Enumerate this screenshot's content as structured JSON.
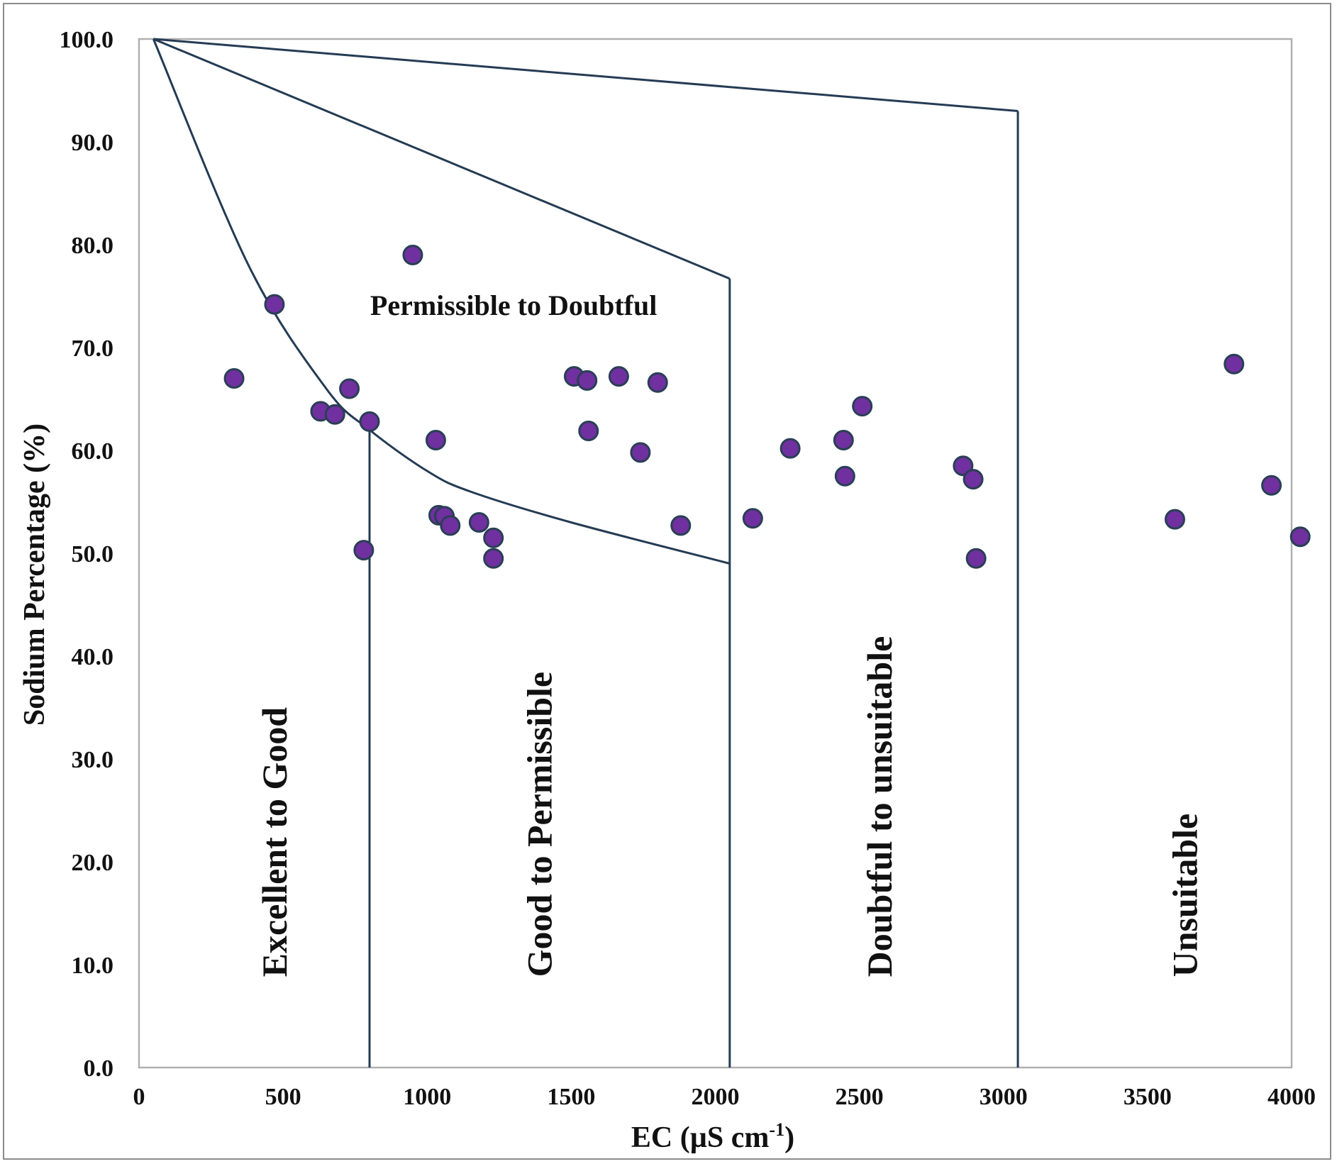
{
  "chart_data": {
    "type": "scatter",
    "title": "",
    "xlabel": "EC (µS cm",
    "xlabel_superscript": "-1",
    "xlabel_suffix": ")",
    "ylabel": "Sodium Percentage (%)",
    "xlim": [
      0,
      4000
    ],
    "ylim": [
      0,
      100
    ],
    "x_ticks": [
      0,
      500,
      1000,
      1500,
      2000,
      2500,
      3000,
      3500,
      4000
    ],
    "x_tick_labels": [
      "0",
      "500",
      "1000",
      "1500",
      "2000",
      "2500",
      "3000",
      "3500",
      "4000"
    ],
    "y_ticks": [
      0,
      10,
      20,
      30,
      40,
      50,
      60,
      70,
      80,
      90,
      100
    ],
    "y_tick_labels": [
      "0.0",
      "10.0",
      "20.0",
      "30.0",
      "40.0",
      "50.0",
      "60.0",
      "70.0",
      "80.0",
      "90.0",
      "100.0"
    ],
    "grid": false,
    "marker_color": "#7030a0",
    "marker_edge_color": "#2a3f55",
    "line_color": "#243b53",
    "boundaries": [
      {
        "name": "curve-excellent-good",
        "points": [
          [
            50,
            100
          ],
          [
            380,
            78
          ],
          [
            650,
            66
          ],
          [
            800,
            62
          ],
          [
            1000,
            58
          ],
          [
            1150,
            56
          ],
          [
            1500,
            53
          ],
          [
            2050,
            49
          ]
        ]
      },
      {
        "name": "line-permissible-doubtful",
        "points": [
          [
            50,
            100
          ],
          [
            2050,
            76.7
          ]
        ]
      },
      {
        "name": "line-doubtful-unsuitable",
        "points": [
          [
            50,
            100
          ],
          [
            3050,
            93
          ]
        ]
      },
      {
        "name": "vertical-800",
        "points": [
          [
            800,
            62
          ],
          [
            800,
            0
          ]
        ]
      },
      {
        "name": "vertical-2050",
        "points": [
          [
            2050,
            76.7
          ],
          [
            2050,
            0
          ]
        ]
      },
      {
        "name": "vertical-3050",
        "points": [
          [
            3050,
            93
          ],
          [
            3050,
            0
          ]
        ]
      }
    ],
    "zones": [
      {
        "label": "Excellent to Good",
        "x": 470,
        "y": 30,
        "rotated": true
      },
      {
        "label": "Good to Permissible",
        "x": 1390,
        "y": 30,
        "rotated": true
      },
      {
        "label": "Doubtful to unsuitable",
        "x": 2570,
        "y": 30,
        "rotated": true
      },
      {
        "label": "Unsuitable",
        "x": 3630,
        "y": 30,
        "rotated": true
      },
      {
        "label": "Permissible to Doubtful",
        "x": 1300,
        "y": 74,
        "rotated": false
      }
    ],
    "points": [
      {
        "x": 330,
        "y": 67.0
      },
      {
        "x": 470,
        "y": 74.2
      },
      {
        "x": 630,
        "y": 63.8
      },
      {
        "x": 680,
        "y": 63.5
      },
      {
        "x": 730,
        "y": 66.0
      },
      {
        "x": 780,
        "y": 50.3
      },
      {
        "x": 800,
        "y": 62.8
      },
      {
        "x": 950,
        "y": 79.0
      },
      {
        "x": 1030,
        "y": 61.0
      },
      {
        "x": 1040,
        "y": 53.7
      },
      {
        "x": 1060,
        "y": 53.6
      },
      {
        "x": 1080,
        "y": 52.7
      },
      {
        "x": 1180,
        "y": 53.0
      },
      {
        "x": 1230,
        "y": 51.5
      },
      {
        "x": 1230,
        "y": 49.5
      },
      {
        "x": 1510,
        "y": 67.2
      },
      {
        "x": 1555,
        "y": 66.8
      },
      {
        "x": 1560,
        "y": 61.9
      },
      {
        "x": 1665,
        "y": 67.2
      },
      {
        "x": 1740,
        "y": 59.8
      },
      {
        "x": 1800,
        "y": 66.6
      },
      {
        "x": 1880,
        "y": 52.7
      },
      {
        "x": 2130,
        "y": 53.4
      },
      {
        "x": 2260,
        "y": 60.2
      },
      {
        "x": 2445,
        "y": 61.0
      },
      {
        "x": 2450,
        "y": 57.5
      },
      {
        "x": 2510,
        "y": 64.3
      },
      {
        "x": 2860,
        "y": 58.5
      },
      {
        "x": 2895,
        "y": 57.2
      },
      {
        "x": 2905,
        "y": 49.5
      },
      {
        "x": 3595,
        "y": 53.3
      },
      {
        "x": 3800,
        "y": 68.4
      },
      {
        "x": 3930,
        "y": 56.6
      },
      {
        "x": 4030,
        "y": 51.6
      }
    ]
  }
}
